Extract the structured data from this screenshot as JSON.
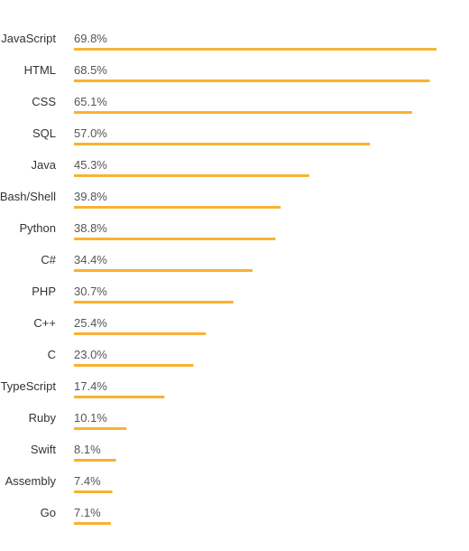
{
  "chart_data": {
    "type": "bar",
    "orientation": "horizontal",
    "categories": [
      "JavaScript",
      "HTML",
      "CSS",
      "SQL",
      "Java",
      "Bash/Shell",
      "Python",
      "C#",
      "PHP",
      "C++",
      "C",
      "TypeScript",
      "Ruby",
      "Swift",
      "Assembly",
      "Go"
    ],
    "values": [
      69.8,
      68.5,
      65.1,
      57.0,
      45.3,
      39.8,
      38.8,
      34.4,
      30.7,
      25.4,
      23.0,
      17.4,
      10.1,
      8.1,
      7.4,
      7.1
    ],
    "value_labels": [
      "69.8%",
      "68.5%",
      "65.1%",
      "57.0%",
      "45.3%",
      "39.8%",
      "38.8%",
      "34.4%",
      "30.7%",
      "25.4%",
      "23.0%",
      "17.4%",
      "10.1%",
      "8.1%",
      "7.4%",
      "7.1%"
    ],
    "xlim": [
      0,
      69.8
    ],
    "grid": false,
    "legend": "none",
    "bar_color": "#f9b233"
  }
}
